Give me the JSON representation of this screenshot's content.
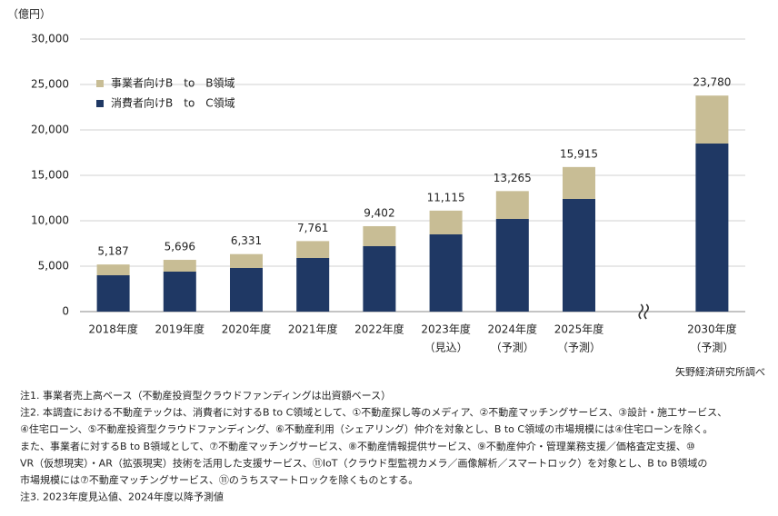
{
  "chart_data": {
    "type": "stacked-bar",
    "y_unit": "（億円）",
    "categories": [
      "2018年度",
      "2019年度",
      "2020年度",
      "2021年度",
      "2022年度",
      "2023年度",
      "2024年度",
      "2025年度",
      null,
      "2030年度"
    ],
    "category_notes": [
      null,
      null,
      null,
      null,
      null,
      "（見込）",
      "（予測）",
      "（予測）",
      null,
      "（予測）"
    ],
    "series": [
      {
        "name": "消費者向けB　to　C領域",
        "color": "#1f3864",
        "values": [
          4000,
          4400,
          4800,
          5900,
          7200,
          8500,
          10200,
          12400,
          null,
          18500
        ]
      },
      {
        "name": "事業者向けB　to　B領域",
        "color": "#c8bd95",
        "values": [
          1187,
          1296,
          1531,
          1861,
          2202,
          2615,
          3065,
          3515,
          null,
          5280
        ]
      }
    ],
    "totals": {
      "values": [
        5187,
        5696,
        6331,
        7761,
        9402,
        11115,
        13265,
        15915,
        null,
        23780
      ],
      "value_labels": [
        "5,187",
        "5,696",
        "6,331",
        "7,761",
        "9,402",
        "11,115",
        "13,265",
        "15,915",
        null,
        "23,780"
      ]
    },
    "ylim": [
      0,
      30000
    ],
    "yticks": [
      0,
      {
        "value": 5000,
        "label": "5,000"
      },
      {
        "value": 10000,
        "label": "10,000"
      },
      {
        "value": 15000,
        "label": "15,000"
      },
      {
        "value": 20000,
        "label": "20,000"
      },
      {
        "value": 25000,
        "label": "25,000"
      },
      {
        "value": 30000,
        "label": "30,000"
      }
    ],
    "grid": true,
    "source": "矢野経済研究所調べ",
    "notes": [
      "注1. 事業者売上高ベース（不動産投資型クラウドファンディングは出資額ベース）",
      "注2. 本調査における不動産テックは、消費者に対するB to C領域として、①不動産探し等のメディア、②不動産マッチングサービス、③設計・施工サービス、",
      "④住宅ローン、⑤不動産投資型クラウドファンディング、⑥不動産利用（シェアリング）仲介を対象とし、B to C領域の市場規模には④住宅ローンを除く。",
      "また、事業者に対するB to B領域として、⑦不動産マッチングサービス、⑧不動産情報提供サービス、⑨不動産仲介・管理業務支援／価格査定支援、⑩",
      "VR（仮想現実）・AR（拡張現実）技術を活用した支援サービス、⑪IoT（クラウド型監視カメラ／画像解析／スマートロック）を対象とし、B to B領域の",
      "市場規模には⑦不動産マッチングサービス、⑪のうちスマートロックを除くものとする。",
      "注3. 2023年度見込値、2024年度以降予測値"
    ]
  }
}
